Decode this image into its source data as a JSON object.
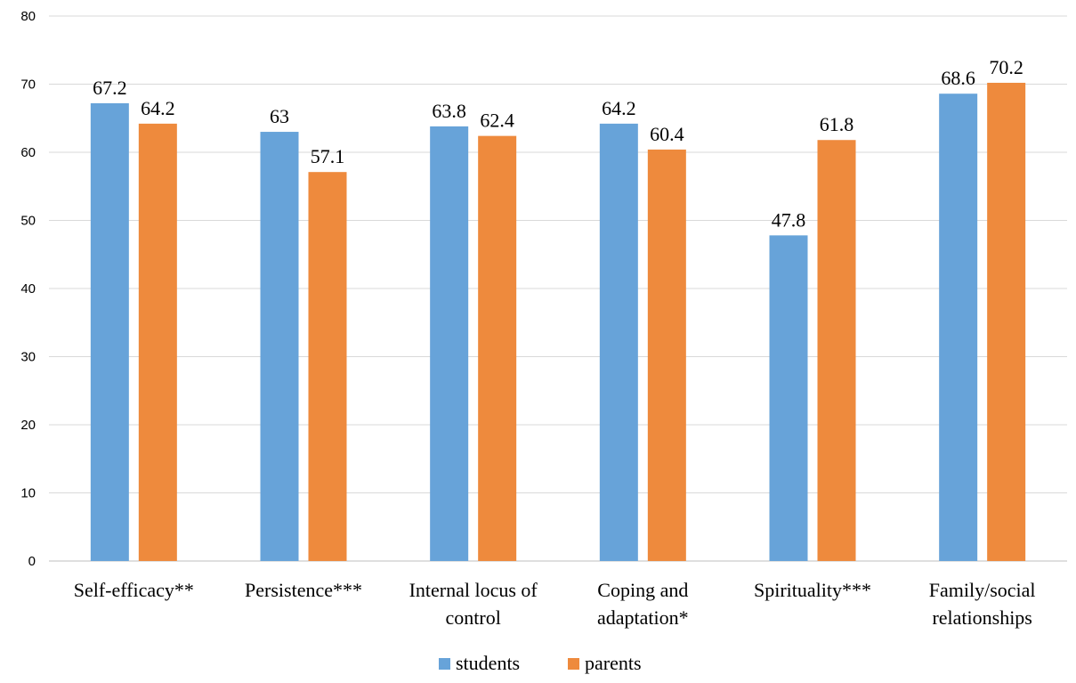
{
  "chart_data": {
    "type": "bar",
    "categories": [
      [
        "Self-efficacy**"
      ],
      [
        "Persistence***"
      ],
      [
        "Internal locus of",
        "control"
      ],
      [
        "Coping and",
        "adaptation*"
      ],
      [
        "Spirituality***"
      ],
      [
        "Family/social",
        "relationships"
      ]
    ],
    "series": [
      {
        "name": "students",
        "color": "#67A3D9",
        "values": [
          67.2,
          63,
          63.8,
          64.2,
          47.8,
          68.6
        ],
        "labels": [
          "67.2",
          "63",
          "63.8",
          "64.2",
          "47.8",
          "68.6"
        ]
      },
      {
        "name": "parents",
        "color": "#EE8A3D",
        "values": [
          64.2,
          57.1,
          62.4,
          60.4,
          61.8,
          70.2
        ],
        "labels": [
          "64.2",
          "57.1",
          "62.4",
          "60.4",
          "61.8",
          "70.2"
        ]
      }
    ],
    "ylim": [
      0,
      80
    ],
    "yticks": [
      0,
      10,
      20,
      30,
      40,
      50,
      60,
      70,
      80
    ],
    "grid": true,
    "legend_position": "bottom",
    "title": "",
    "xlabel": "",
    "ylabel": ""
  }
}
